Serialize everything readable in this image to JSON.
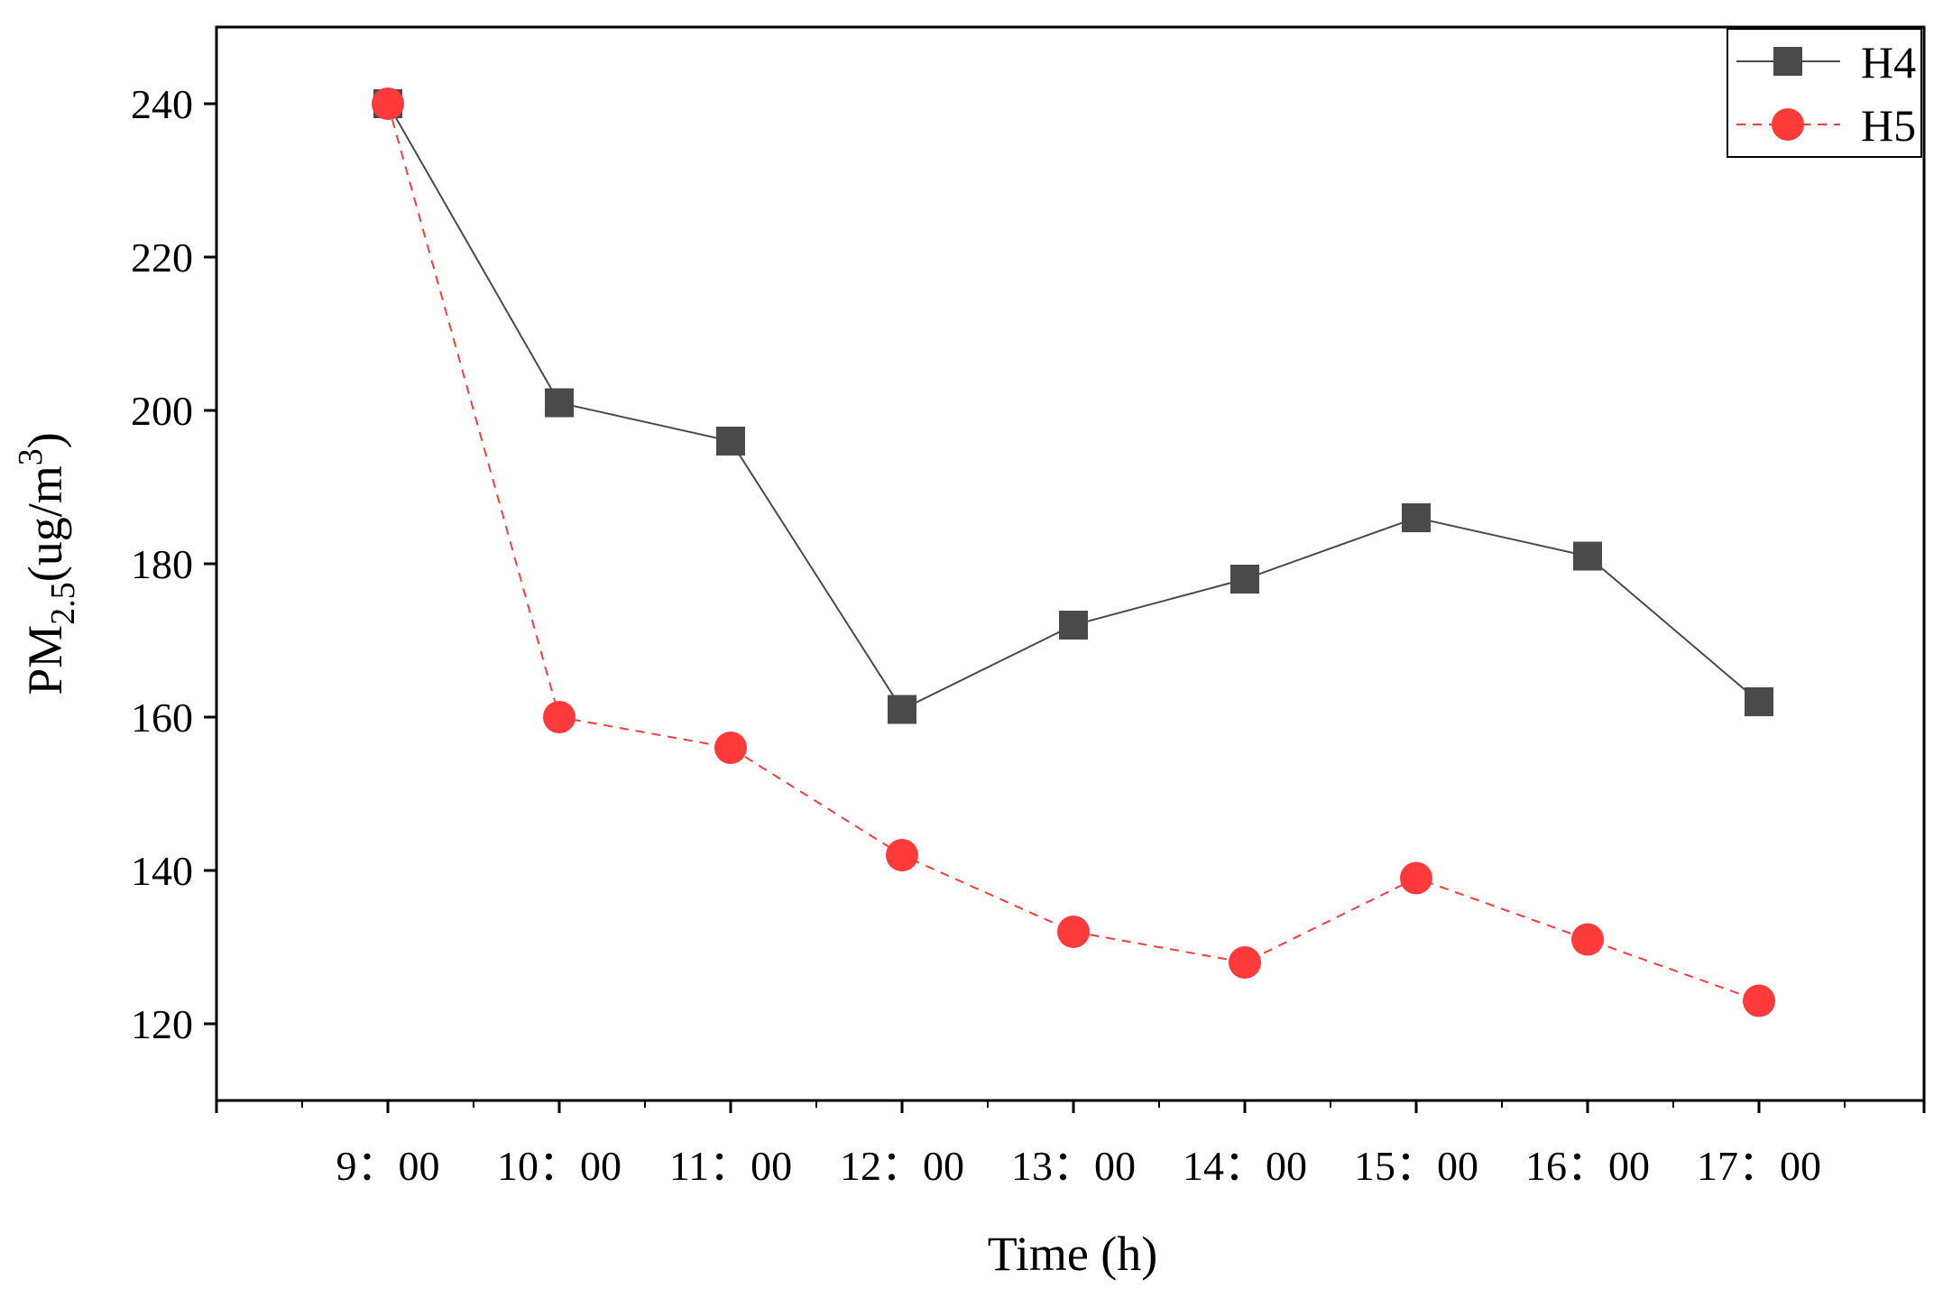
{
  "chart_data": {
    "type": "line",
    "title": "",
    "xlabel": "Time (h)",
    "ylabel": {
      "main": "PM",
      "subscript": "2.5",
      "units_open": "(ug/m",
      "superscript": "3",
      "units_close": ")"
    },
    "categories": [
      "9：00",
      "10：00",
      "11：00",
      "12：00",
      "13：00",
      "14：00",
      "15：00",
      "16：00",
      "17：00"
    ],
    "ylim": [
      110,
      250
    ],
    "yticks": [
      120,
      140,
      160,
      180,
      200,
      220,
      240
    ],
    "series": [
      {
        "name": "H4",
        "values": [
          240,
          201,
          196,
          161,
          172,
          178,
          186,
          181,
          162
        ],
        "color": "#4a4a4a",
        "marker": "square",
        "line": "solid"
      },
      {
        "name": "H5",
        "values": [
          240,
          160,
          156,
          142,
          132,
          128,
          139,
          131,
          123
        ],
        "color": "#ff3a3a",
        "marker": "circle",
        "line": "dashed"
      }
    ],
    "legend_position": "top-right",
    "grid": false
  }
}
